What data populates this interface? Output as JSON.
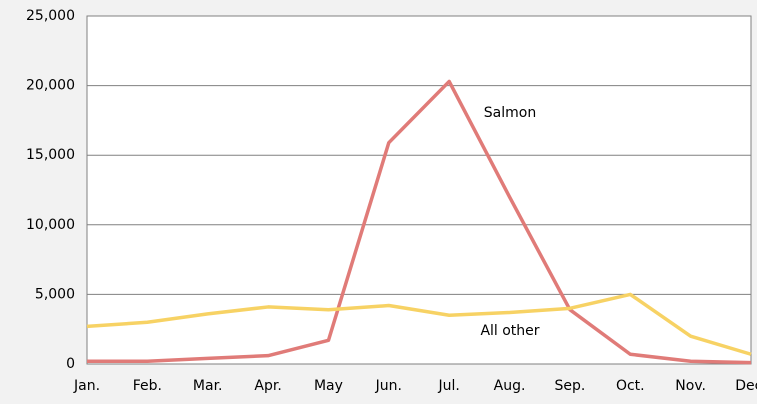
{
  "chart_data": {
    "type": "line",
    "categories": [
      "Jan.",
      "Feb.",
      "Mar.",
      "Apr.",
      "May",
      "Jun.",
      "Jul.",
      "Aug.",
      "Sep.",
      "Oct.",
      "Nov.",
      "Dec."
    ],
    "series": [
      {
        "name": "Salmon",
        "color": "#e07b78",
        "values": [
          200,
          200,
          400,
          600,
          1700,
          15900,
          20300,
          12000,
          3900,
          700,
          200,
          100
        ]
      },
      {
        "name": "All other",
        "color": "#f7d264",
        "values": [
          2700,
          3000,
          3600,
          4100,
          3900,
          4200,
          3500,
          3700,
          4000,
          5000,
          2000,
          700
        ]
      }
    ],
    "ylim": [
      0,
      25000
    ],
    "yticks": [
      0,
      {
        "value": 5000,
        "label": "5,000"
      },
      {
        "value": 10000,
        "label": "10,000"
      },
      {
        "value": 15000,
        "label": "15,000"
      },
      {
        "value": 20000,
        "label": "20,000"
      },
      {
        "value": 25000,
        "label": "25,000"
      }
    ],
    "grid": true
  }
}
